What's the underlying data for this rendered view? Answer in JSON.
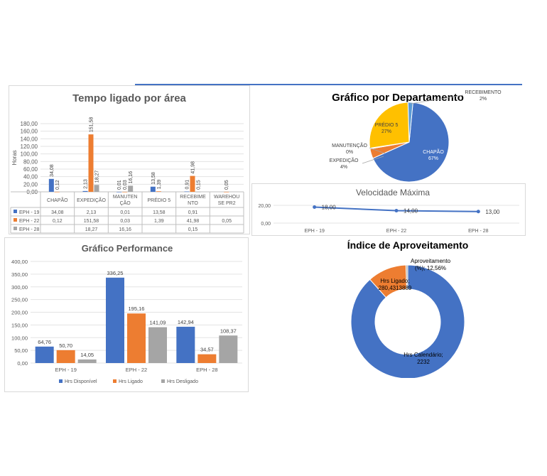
{
  "colors": {
    "blue": "#4472c4",
    "orange": "#ed7d31",
    "gray": "#a5a5a5",
    "yellow": "#ffc000",
    "lightblue": "#5b9bd5",
    "text": "#404040",
    "grid": "#d9d9d9"
  },
  "chart_data": [
    {
      "type": "bar",
      "title": "Tempo ligado por área",
      "ylabel": "Horas",
      "ylim": [
        0,
        180
      ],
      "yticks": [
        "0,00",
        "20,00",
        "40,00",
        "60,00",
        "80,00",
        "100,00",
        "120,00",
        "140,00",
        "160,00",
        "180,00"
      ],
      "categories": [
        "CHAPÃO",
        "EXPEDIÇÃO",
        "MANUTENÇÃO",
        "PRÉDIO 5",
        "RECEBIMENTO",
        "WAREHOUSE PR2"
      ],
      "category_labels": [
        [
          "CHAPÃO"
        ],
        [
          "EXPEDIÇÃO"
        ],
        [
          "MANUTEN",
          "ÇÃO"
        ],
        [
          "PRÉDIO 5"
        ],
        [
          "RECEBIME",
          "NTO"
        ],
        [
          "WAREHOU",
          "SE PR2"
        ]
      ],
      "series": [
        {
          "name": "EPH - 19",
          "values": [
            34.08,
            2.13,
            0.01,
            13.58,
            0.91,
            null
          ],
          "labels": [
            "34,08",
            "2,13",
            "0,01",
            "13,58",
            "0,91",
            ""
          ]
        },
        {
          "name": "EPH - 22",
          "values": [
            0.12,
            151.58,
            0.03,
            1.39,
            41.98,
            0.05
          ],
          "labels": [
            "0,12",
            "151,58",
            "0,03",
            "1,39",
            "41,98",
            "0,05"
          ]
        },
        {
          "name": "EPH - 28",
          "values": [
            null,
            18.27,
            16.16,
            null,
            0.15,
            null
          ],
          "labels": [
            "",
            "18,27",
            "16,16",
            "",
            "0,15",
            ""
          ]
        }
      ]
    },
    {
      "type": "pie",
      "title": "Gráfico por Departamento",
      "slices": [
        {
          "name": "CHAPÃO",
          "pct": "67%",
          "value": 67
        },
        {
          "name": "EXPEDIÇÃO",
          "pct": "4%",
          "value": 4
        },
        {
          "name": "MANUTENÇÃO",
          "pct": "0%",
          "value": 0.3
        },
        {
          "name": "PRÉDIO 5",
          "pct": "27%",
          "value": 27
        },
        {
          "name": "RECEBIMENTO",
          "pct": "2%",
          "value": 2
        }
      ]
    },
    {
      "type": "line",
      "title": "Velocidade Máxima",
      "ylim": [
        0,
        20
      ],
      "yticks": [
        "0,00",
        "20,00"
      ],
      "categories": [
        "EPH - 19",
        "EPH - 22",
        "EPH - 28"
      ],
      "values": [
        18,
        14,
        13
      ],
      "labels": [
        "18,00",
        "14,00",
        "13,00"
      ]
    },
    {
      "type": "bar",
      "title": "Gráfico Performance",
      "ylim": [
        0,
        400
      ],
      "yticks": [
        "0,00",
        "50,00",
        "100,00",
        "150,00",
        "200,00",
        "250,00",
        "300,00",
        "350,00",
        "400,00"
      ],
      "categories": [
        "EPH - 19",
        "EPH - 22",
        "EPH - 28"
      ],
      "series": [
        {
          "name": "Hrs Disponível",
          "values": [
            64.76,
            336.25,
            142.94
          ],
          "labels": [
            "64,76",
            "336,25",
            "142,94"
          ]
        },
        {
          "name": "Hrs Ligado",
          "values": [
            50.7,
            195.16,
            34.57
          ],
          "labels": [
            "50,70",
            "195,16",
            "34,57"
          ]
        },
        {
          "name": "Hrs Desligado",
          "values": [
            14.05,
            141.09,
            108.37
          ],
          "labels": [
            "14,05",
            "141,09",
            "108,37"
          ]
        }
      ]
    },
    {
      "type": "pie",
      "subtype": "doughnut",
      "title": "Índice de Aproveitamento",
      "slices": [
        {
          "name": "Hrs Calendário",
          "value": 2232,
          "label_lines": [
            "Hrs Calendário;",
            "2232"
          ]
        },
        {
          "name": "Hrs Ligado",
          "value": 280.4313889,
          "label_lines": [
            "Hrs Ligado;",
            "280,4313889"
          ]
        },
        {
          "name": "Aproveitamento (%)",
          "value": 12.56,
          "label_lines": [
            "Aproveitamento",
            "(%); 12,56%"
          ]
        }
      ]
    }
  ]
}
